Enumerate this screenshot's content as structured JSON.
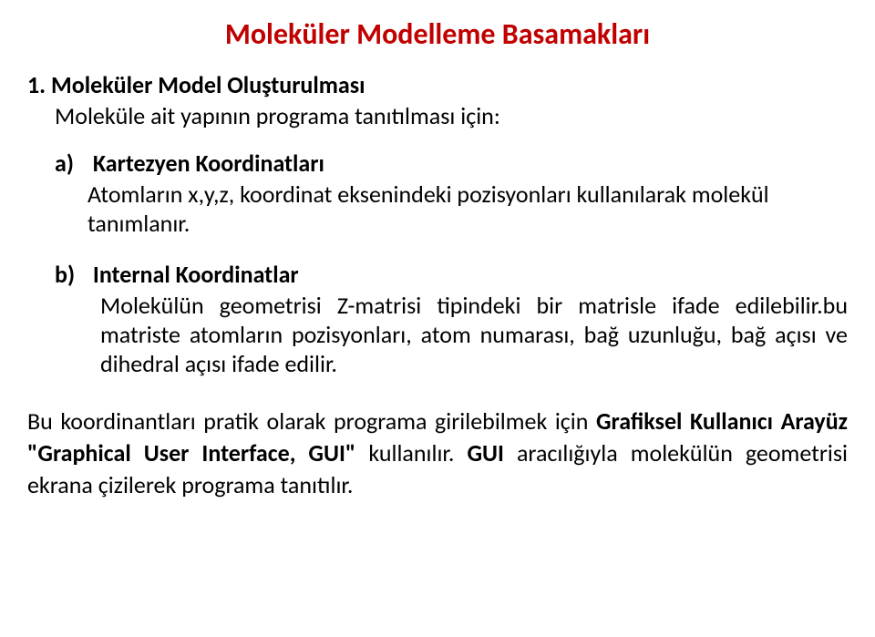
{
  "title": {
    "text": "Moleküler Modelleme Basamakları",
    "color": "#c00000",
    "fontsize": 32
  },
  "section": {
    "number": "1.",
    "title": "Moleküler Model Oluşturulması",
    "sub": "Moleküle ait yapının programa tanıtılması için:",
    "fontsize": 26
  },
  "item_a": {
    "label": "a)",
    "head": "Kartezyen Koordinatları",
    "body": "Atomların x,y,z, koordinat eksenindeki pozisyonları kullanılarak molekül tanımlanır.",
    "fontsize": 26
  },
  "item_b": {
    "label": "b)",
    "head": "Internal Koordinatlar",
    "body": "Molekülün geometrisi Z-matrisi tipindeki bir matrisle  ifade edilebilir.bu matriste atomların pozisyonları, atom numarası, bağ uzunluğu, bağ açısı ve dihedral açısı ifade edilir.",
    "fontsize": 26
  },
  "final": {
    "pre": "Bu koordinantları pratik olarak programa girilebilmek için ",
    "bold1": "Grafiksel Kullanıcı Arayüz \"Graphical User Interface, GUI\"",
    "mid": " kullanılır. ",
    "bold2": "GUI",
    "post": " aracılığıyla molekülün geometrisi ekrana çizilerek programa tanıtılır.",
    "fontsize": 26
  },
  "body_fontsize": 26
}
